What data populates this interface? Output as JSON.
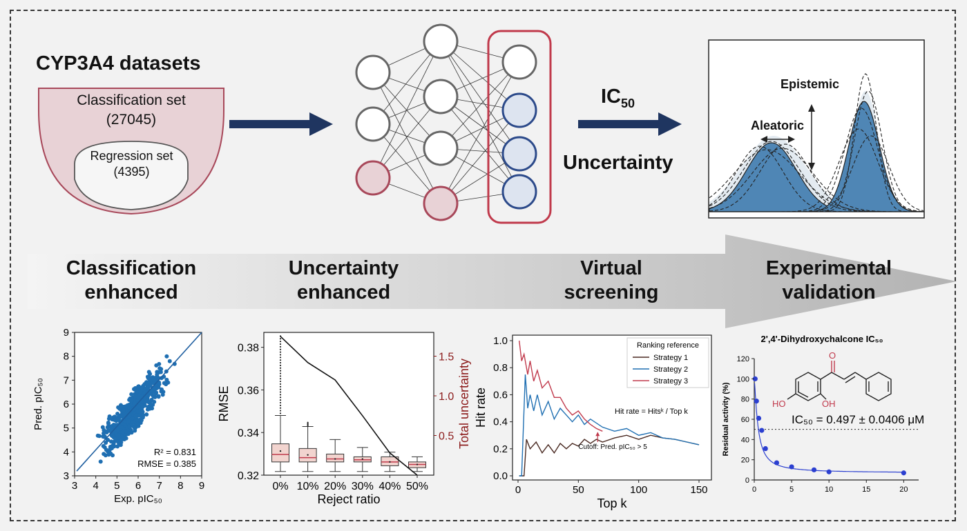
{
  "colors": {
    "navy": "#1f3560",
    "maroon": "#a8485a",
    "pink_fill": "#e8d2d6",
    "blue": "#1f6fb2",
    "light_blue": "#dde4f0",
    "red": "#c0394b",
    "brown": "#4a2a22",
    "dark_red": "#8b1a1a"
  },
  "datasets": {
    "title": "CYP3A4 datasets",
    "classification_label": "Classification set",
    "classification_count": "(27045)",
    "regression_label": "Regression set",
    "regression_count": "(4395)"
  },
  "ic50": {
    "main": "IC",
    "sub": "50"
  },
  "uncertainty_label": "Uncertainty",
  "distribution": {
    "epistemic": "Epistemic",
    "aleatoric": "Aleatoric"
  },
  "stages": [
    {
      "line1": "Classification",
      "line2": "enhanced"
    },
    {
      "line1": "Uncertainty",
      "line2": "enhanced"
    },
    {
      "line1": "Virtual",
      "line2": "screening"
    },
    {
      "line1": "Experimental",
      "line2": "validation"
    }
  ],
  "chart_data": [
    {
      "type": "scatter",
      "xlabel": "Exp. pIC₅₀",
      "ylabel": "Pred. pIC₅₀",
      "xlim": [
        3,
        9
      ],
      "ylim": [
        3,
        9
      ],
      "xticks": [
        "3",
        "4",
        "5",
        "6",
        "7",
        "8",
        "9"
      ],
      "yticks": [
        "3",
        "4",
        "5",
        "6",
        "7",
        "8",
        "9"
      ],
      "annotations": [
        "R² = 0.831",
        "RMSE = 0.385"
      ]
    },
    {
      "type": "box",
      "xlabel": "Reject ratio",
      "ylabel": "RMSE",
      "y2label": "Total uncertainty",
      "categories": [
        "0%",
        "10%",
        "20%",
        "30%",
        "40%",
        "50%"
      ],
      "yticks": [
        "0.32",
        "0.34",
        "0.36",
        "0.38"
      ],
      "y2ticks": [
        "0.5",
        "1.0",
        "1.5"
      ],
      "ylim": [
        0.32,
        0.387
      ],
      "boxes": [
        {
          "q1": 0.3262,
          "median": 0.3297,
          "q3": 0.3347,
          "lo": 0.3217,
          "hi": 0.348,
          "mean": 0.3313
        },
        {
          "q1": 0.3262,
          "median": 0.3282,
          "q3": 0.3325,
          "lo": 0.3217,
          "hi": 0.3428,
          "mean": 0.3295
        },
        {
          "q1": 0.3262,
          "median": 0.3276,
          "q3": 0.3299,
          "lo": 0.3217,
          "hi": 0.3367,
          "mean": 0.3276
        },
        {
          "q1": 0.3262,
          "median": 0.3272,
          "q3": 0.3286,
          "lo": 0.3217,
          "hi": 0.333,
          "mean": 0.3276
        },
        {
          "q1": 0.3244,
          "median": 0.3262,
          "q3": 0.3286,
          "lo": 0.3217,
          "hi": 0.3308,
          "mean": 0.3262
        },
        {
          "q1": 0.3235,
          "median": 0.325,
          "q3": 0.3262,
          "lo": 0.3217,
          "hi": 0.3286,
          "mean": 0.325
        }
      ],
      "line": [
        1.75,
        1.42,
        1.2,
        0.75,
        0.28,
        0.0
      ]
    },
    {
      "type": "line",
      "xlabel": "Top k",
      "ylabel": "Hit rate",
      "xlim": [
        0,
        150
      ],
      "ylim": [
        0,
        1
      ],
      "xticks": [
        "0",
        "50",
        "100",
        "150"
      ],
      "yticks": [
        "0.0",
        "0.2",
        "0.4",
        "0.6",
        "0.8",
        "1.0"
      ],
      "legend_title": "Ranking reference",
      "series": [
        {
          "name": "Strategy 1",
          "x": [
            1,
            5,
            7,
            10,
            15,
            20,
            25,
            30,
            35,
            40,
            45,
            50,
            55,
            60,
            65,
            70,
            80,
            90,
            100,
            110,
            120,
            130,
            140,
            150
          ],
          "y": [
            0.0,
            0.0,
            0.27,
            0.2,
            0.25,
            0.17,
            0.23,
            0.17,
            0.24,
            0.2,
            0.24,
            0.22,
            0.27,
            0.24,
            0.27,
            0.25,
            0.28,
            0.3,
            0.27,
            0.3,
            0.28,
            0.27,
            0.25,
            0.23
          ]
        },
        {
          "name": "Strategy 2",
          "x": [
            1,
            3,
            6,
            8,
            10,
            13,
            16,
            20,
            25,
            30,
            35,
            40,
            45,
            50,
            55,
            60,
            70,
            80,
            90,
            100,
            110,
            120,
            130,
            140,
            150
          ],
          "y": [
            0.0,
            0.0,
            0.75,
            0.5,
            0.6,
            0.48,
            0.6,
            0.45,
            0.55,
            0.42,
            0.5,
            0.45,
            0.4,
            0.45,
            0.38,
            0.42,
            0.36,
            0.33,
            0.35,
            0.3,
            0.32,
            0.28,
            0.27,
            0.25,
            0.23
          ]
        },
        {
          "name": "Strategy 3",
          "x": [
            1,
            3,
            5,
            8,
            10,
            13,
            16,
            20,
            25,
            30,
            35,
            40,
            45,
            50,
            55,
            60,
            65,
            70
          ],
          "y": [
            1.0,
            0.85,
            0.9,
            0.75,
            0.85,
            0.7,
            0.78,
            0.65,
            0.7,
            0.58,
            0.58,
            0.5,
            0.45,
            0.48,
            0.42,
            0.38,
            0.35,
            0.33
          ]
        }
      ],
      "annotations": [
        "Hit rate = Hitsᵏ / Top k",
        "Cutoff: Pred. pIC₅₀ > 5"
      ]
    },
    {
      "type": "scatter",
      "title": "2',4'-Dihydroxychalcone IC₅₀",
      "ylabel": "Residual activity (%)",
      "xlim": [
        0,
        22
      ],
      "ylim": [
        0,
        120
      ],
      "xticks": [
        "0",
        "5",
        "10",
        "15",
        "20"
      ],
      "yticks": [
        "0",
        "20",
        "40",
        "60",
        "80",
        "100",
        "120"
      ],
      "x": [
        0.12,
        0.3,
        0.6,
        1.0,
        1.5,
        3,
        5,
        8,
        10,
        20
      ],
      "y": [
        100,
        78,
        61,
        49,
        31,
        17,
        13,
        10,
        8,
        7
      ],
      "ic50_text": "IC₅₀ = 0.497 ± 0.0406 μM",
      "reference_line": 50,
      "molecule_labels": [
        "O",
        "HO",
        "OH"
      ]
    }
  ]
}
